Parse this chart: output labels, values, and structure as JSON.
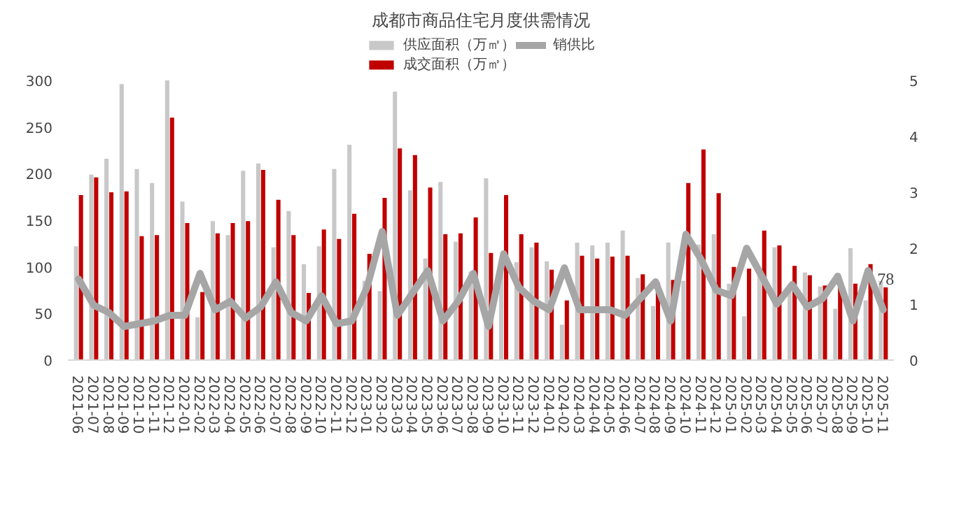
{
  "chart_data": {
    "type": "bar",
    "title": "成都市商品住宅月度供需情况",
    "categories": [
      "2021-06",
      "2021-07",
      "2021-08",
      "2021-09",
      "2021-10",
      "2021-11",
      "2021-12",
      "2022-01",
      "2022-02",
      "2022-03",
      "2022-04",
      "2022-05",
      "2022-06",
      "2022-07",
      "2022-08",
      "2022-09",
      "2022-10",
      "2022-11",
      "2022-12",
      "2023-01",
      "2023-02",
      "2023-03",
      "2023-04",
      "2023-05",
      "2023-06",
      "2023-07",
      "2023-08",
      "2023-09",
      "2023-10",
      "2023-11",
      "2023-12",
      "2024-01",
      "2024-02",
      "2024-03",
      "2024-04",
      "2024-05",
      "2024-06",
      "2024-07",
      "2024-08",
      "2024-09",
      "2024-10",
      "2024-11",
      "2024-12",
      "2025-01",
      "2025-02",
      "2025-03",
      "2025-04",
      "2025-05",
      "2025-06",
      "2025-07",
      "2025-08",
      "2025-09",
      "2025-10",
      "2025-11"
    ],
    "series": [
      {
        "name": "供应面积（万㎡）",
        "color": "#c8c8c8",
        "values": [
          122,
          199,
          216,
          296,
          205,
          190,
          300,
          170,
          46,
          149,
          134,
          203,
          211,
          121,
          160,
          103,
          122,
          205,
          231,
          85,
          74,
          288,
          182,
          109,
          191,
          127,
          95,
          195,
          93,
          105,
          121,
          106,
          38,
          126,
          123,
          126,
          139,
          88,
          58,
          126,
          85,
          124,
          135,
          82,
          47,
          95,
          121,
          76,
          94,
          79,
          55,
          120,
          64,
          85
        ]
      },
      {
        "name": "成交面积（万㎡）",
        "color": "#c00000",
        "values": [
          177,
          196,
          180,
          181,
          133,
          134,
          260,
          147,
          73,
          136,
          147,
          149,
          204,
          172,
          134,
          72,
          140,
          130,
          157,
          114,
          174,
          227,
          220,
          185,
          135,
          136,
          153,
          115,
          177,
          135,
          126,
          97,
          64,
          112,
          109,
          111,
          112,
          92,
          83,
          86,
          190,
          226,
          179,
          100,
          98,
          139,
          123,
          101,
          91,
          80,
          79,
          82,
          103,
          78
        ],
        "value_labels": [
          null,
          null,
          null,
          null,
          null,
          null,
          null,
          null,
          null,
          null,
          null,
          null,
          null,
          null,
          null,
          null,
          null,
          null,
          null,
          null,
          null,
          null,
          null,
          null,
          null,
          null,
          null,
          null,
          null,
          null,
          null,
          null,
          null,
          null,
          null,
          null,
          null,
          null,
          null,
          null,
          null,
          null,
          null,
          null,
          null,
          null,
          null,
          null,
          null,
          null,
          null,
          null,
          null,
          "78"
        ]
      },
      {
        "name": "销供比",
        "type": "line",
        "axis": "y2",
        "color": "#a6a6a6",
        "values": [
          1.45,
          0.98,
          0.85,
          0.6,
          0.65,
          0.7,
          0.8,
          0.8,
          1.55,
          0.9,
          1.05,
          0.75,
          0.95,
          1.4,
          0.85,
          0.7,
          1.15,
          0.65,
          0.7,
          1.3,
          2.3,
          0.8,
          1.2,
          1.6,
          0.7,
          1.05,
          1.55,
          0.6,
          1.9,
          1.3,
          1.05,
          0.9,
          1.65,
          0.9,
          0.9,
          0.9,
          0.8,
          1.1,
          1.4,
          0.7,
          2.25,
          1.8,
          1.25,
          1.15,
          2.0,
          1.5,
          1.0,
          1.35,
          0.95,
          1.1,
          1.5,
          0.7,
          1.6,
          0.9
        ]
      }
    ],
    "ylim": [
      0,
      300
    ],
    "yticks": [
      0,
      50,
      100,
      150,
      200,
      250,
      300
    ],
    "y2lim": [
      0,
      5
    ],
    "y2ticks": [
      0,
      1,
      2,
      3,
      4,
      5
    ],
    "grid": false,
    "legend": "top"
  }
}
